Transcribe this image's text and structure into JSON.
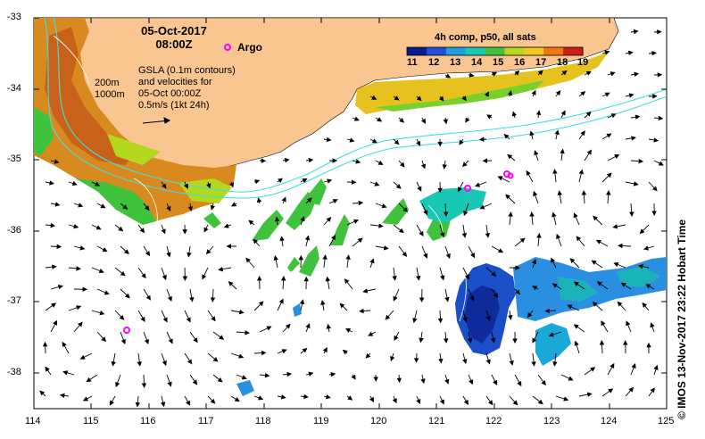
{
  "header": {
    "date": "05-Oct-2017",
    "time": "08:00Z",
    "argo_label": "Argo"
  },
  "legend": {
    "colorbar_title": "4h comp, p50, all sats",
    "colorbar_ticks": [
      "11",
      "12",
      "13",
      "14",
      "15",
      "16",
      "17",
      "18",
      "19"
    ],
    "colorbar_colors": [
      "#0a1a8c",
      "#1f4fd8",
      "#1f9fe0",
      "#19c8b4",
      "#3fc33c",
      "#b4d81e",
      "#f0c81e",
      "#f07814",
      "#c81e14"
    ]
  },
  "annotations": {
    "depth_200": "200m",
    "depth_1000": "1000m",
    "gsla_lines": [
      "GSLA (0.1m contours)",
      "and velocities for",
      "05-Oct 00:00Z",
      "0.5m/s (1kt 24h)"
    ]
  },
  "axes": {
    "x_ticks": [
      "114",
      "115",
      "116",
      "117",
      "118",
      "119",
      "120",
      "121",
      "122",
      "123",
      "124",
      "125"
    ],
    "y_ticks": [
      "-33",
      "-34",
      "-35",
      "-36",
      "-37",
      "-38"
    ]
  },
  "credit": "© IMOS 13-Nov-2017 23:22 Hobart Time",
  "colors": {
    "land": "#f9c590",
    "isobath": "#40e0e0",
    "argo": "#ff00ff",
    "sst_warm": "#e07a14",
    "sst_mid": "#3cc23a",
    "sst_cool": "#1a52c8"
  }
}
